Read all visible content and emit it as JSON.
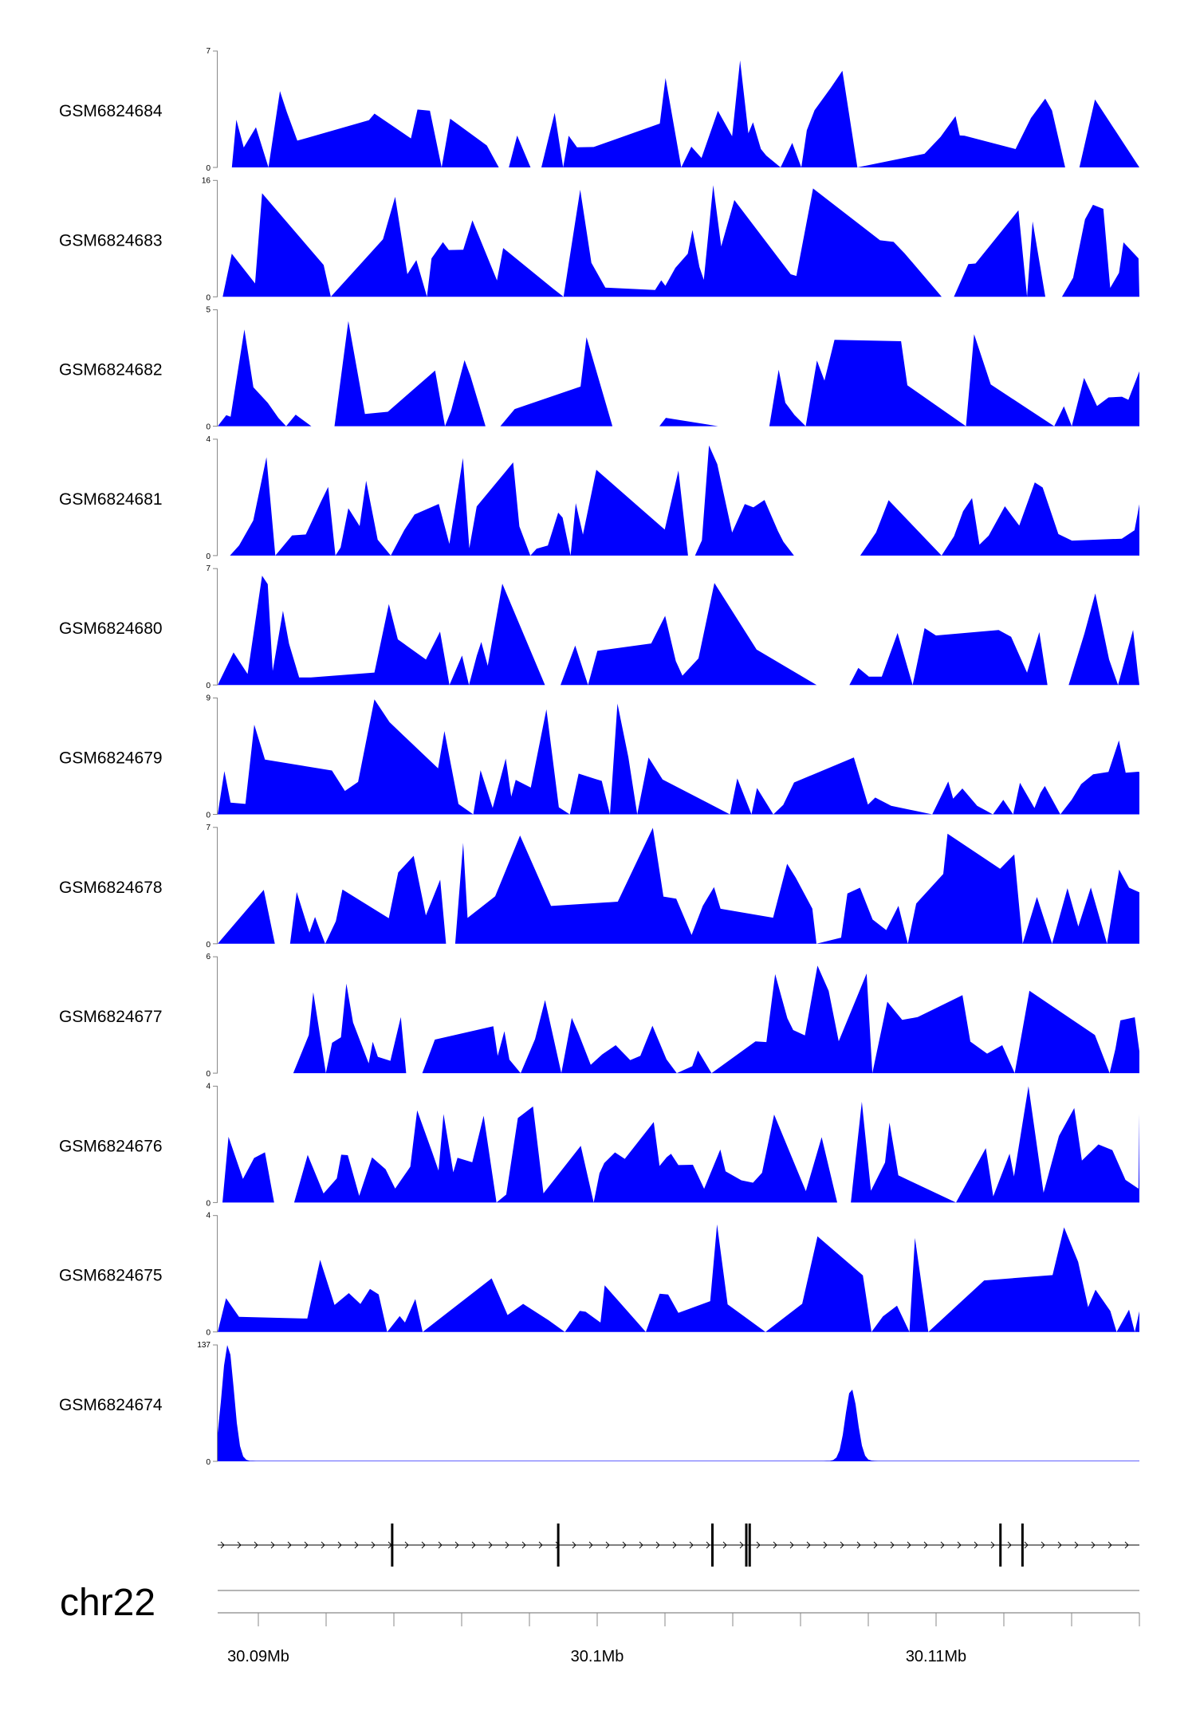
{
  "chart_data": {
    "type": "area",
    "chromosome": "chr22",
    "xlim": [
      30088800,
      30116000
    ],
    "x_ticks": [
      {
        "position": 30090000,
        "label": "30.09Mb"
      },
      {
        "position": 30100000,
        "label": "30.1Mb"
      },
      {
        "position": 30110000,
        "label": "30.11Mb"
      }
    ],
    "x_minor_ticks": [
      30092000,
      30094000,
      30096000,
      30098000,
      30102000,
      30104000,
      30106000,
      30108000,
      30112000,
      30114000,
      30116000
    ],
    "fill_color": "#0000ff",
    "series": [
      {
        "name": "GSM6824684",
        "ymax": 7,
        "ymin_label": "0",
        "ymax_label": "7"
      },
      {
        "name": "GSM6824683",
        "ymax": 16,
        "ymin_label": "0",
        "ymax_label": "16"
      },
      {
        "name": "GSM6824682",
        "ymax": 5,
        "ymin_label": "0",
        "ymax_label": "5"
      },
      {
        "name": "GSM6824681",
        "ymax": 4,
        "ymin_label": "0",
        "ymax_label": "4"
      },
      {
        "name": "GSM6824680",
        "ymax": 7,
        "ymin_label": "0",
        "ymax_label": "7"
      },
      {
        "name": "GSM6824679",
        "ymax": 9,
        "ymin_label": "0",
        "ymax_label": "9"
      },
      {
        "name": "GSM6824678",
        "ymax": 7,
        "ymin_label": "0",
        "ymax_label": "7"
      },
      {
        "name": "GSM6824677",
        "ymax": 6,
        "ymin_label": "0",
        "ymax_label": "6"
      },
      {
        "name": "GSM6824676",
        "ymax": 4,
        "ymin_label": "0",
        "ymax_label": "4"
      },
      {
        "name": "GSM6824675",
        "ymax": 4,
        "ymin_label": "0",
        "ymax_label": "4"
      },
      {
        "name": "GSM6824674",
        "ymax": 137,
        "ymin_label": "0",
        "ymax_label": "137",
        "peaks": [
          {
            "position": 30089100,
            "value": 137,
            "width": 250
          },
          {
            "position": 30107500,
            "value": 85,
            "width": 250
          }
        ]
      }
    ],
    "gene_model": {
      "strand": "+",
      "exons": [
        30093950,
        30098850,
        30103400,
        30104400,
        30104500,
        30111900,
        30112550
      ]
    }
  }
}
